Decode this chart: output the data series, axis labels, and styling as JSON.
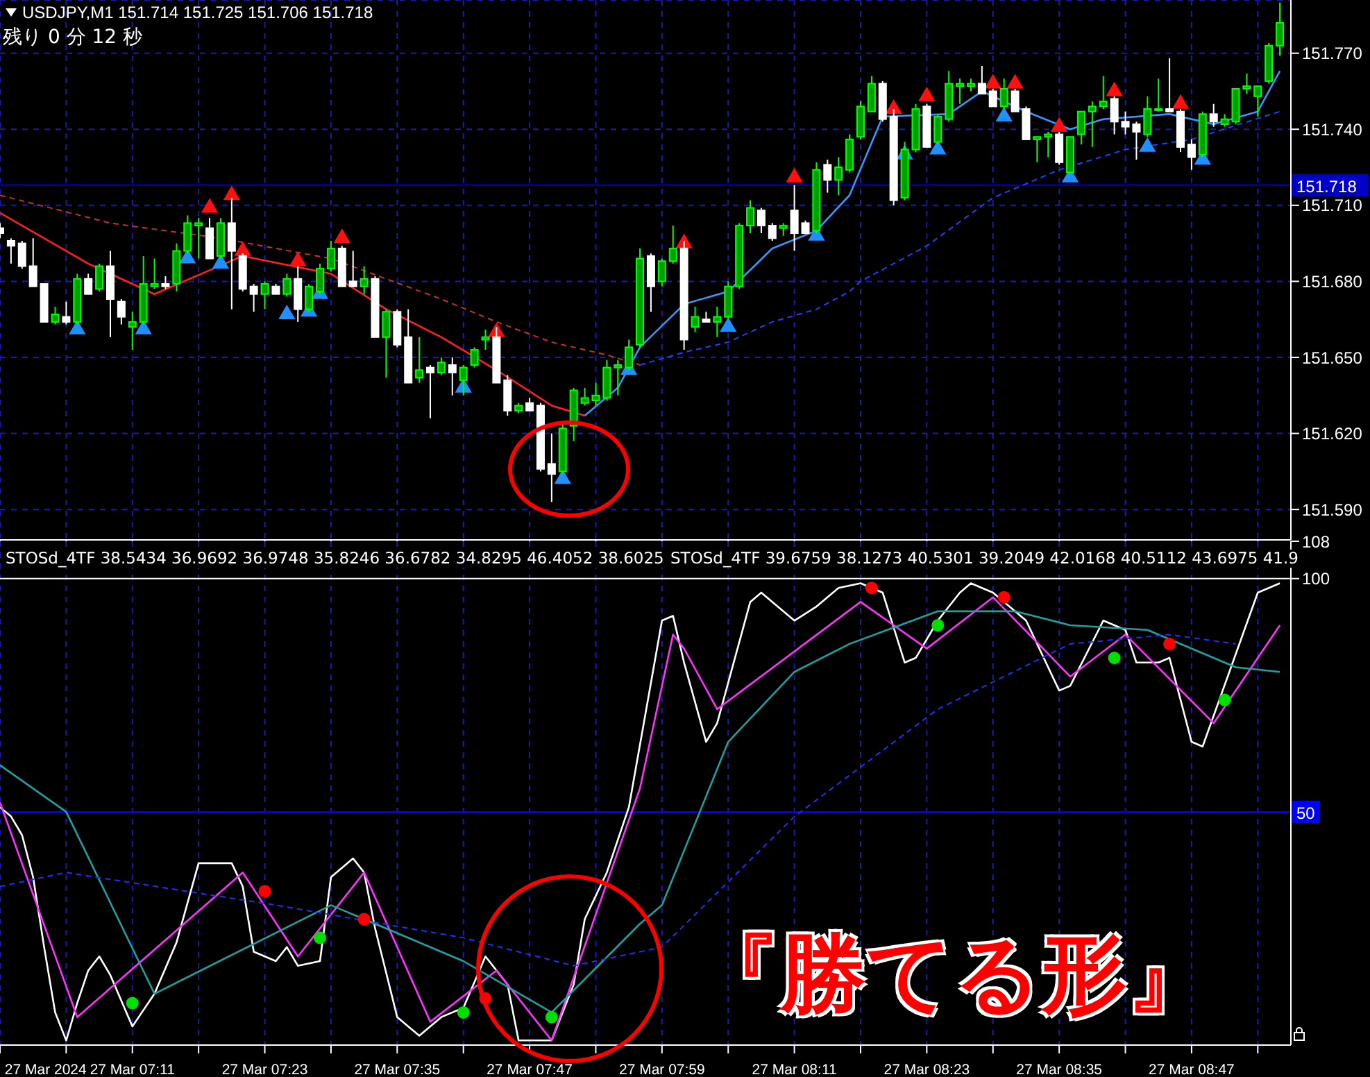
{
  "chart_data": [
    {
      "type": "candlestick",
      "title": "USDJPY,M1  151.714 151.725 151.706 151.718",
      "annotations": [
        "残り 0 分 12 秒"
      ],
      "x": [
        "2024-03-27T06:59",
        "2024-03-27T07:00",
        "2024-03-27T07:01",
        "2024-03-27T07:02",
        "2024-03-27T07:03",
        "2024-03-27T07:04",
        "2024-03-27T07:05",
        "2024-03-27T07:06",
        "2024-03-27T07:07",
        "2024-03-27T07:08",
        "2024-03-27T07:09",
        "2024-03-27T07:10",
        "2024-03-27T07:11",
        "2024-03-27T07:12",
        "2024-03-27T07:13",
        "2024-03-27T07:14",
        "2024-03-27T07:15",
        "2024-03-27T07:16",
        "2024-03-27T07:17",
        "2024-03-27T07:18",
        "2024-03-27T07:19",
        "2024-03-27T07:20",
        "2024-03-27T07:21",
        "2024-03-27T07:22",
        "2024-03-27T07:23",
        "2024-03-27T07:24",
        "2024-03-27T07:25",
        "2024-03-27T07:26",
        "2024-03-27T07:27",
        "2024-03-27T07:28",
        "2024-03-27T07:29",
        "2024-03-27T07:30",
        "2024-03-27T07:31",
        "2024-03-27T07:32",
        "2024-03-27T07:33",
        "2024-03-27T07:34",
        "2024-03-27T07:35",
        "2024-03-27T07:36",
        "2024-03-27T07:37",
        "2024-03-27T07:38",
        "2024-03-27T07:39",
        "2024-03-27T07:40",
        "2024-03-27T07:41",
        "2024-03-27T07:42",
        "2024-03-27T07:43",
        "2024-03-27T07:44",
        "2024-03-27T07:45",
        "2024-03-27T07:46",
        "2024-03-27T07:47",
        "2024-03-27T07:48",
        "2024-03-27T07:49",
        "2024-03-27T07:50",
        "2024-03-27T07:51",
        "2024-03-27T07:52",
        "2024-03-27T07:53",
        "2024-03-27T07:54",
        "2024-03-27T07:55",
        "2024-03-27T07:56",
        "2024-03-27T07:57",
        "2024-03-27T07:58",
        "2024-03-27T07:59",
        "2024-03-27T08:00",
        "2024-03-27T08:01",
        "2024-03-27T08:02",
        "2024-03-27T08:03",
        "2024-03-27T08:04",
        "2024-03-27T08:05",
        "2024-03-27T08:06",
        "2024-03-27T08:07",
        "2024-03-27T08:08",
        "2024-03-27T08:09",
        "2024-03-27T08:10",
        "2024-03-27T08:11",
        "2024-03-27T08:12",
        "2024-03-27T08:13",
        "2024-03-27T08:14",
        "2024-03-27T08:15",
        "2024-03-27T08:16",
        "2024-03-27T08:17",
        "2024-03-27T08:18",
        "2024-03-27T08:19",
        "2024-03-27T08:20",
        "2024-03-27T08:21",
        "2024-03-27T08:22",
        "2024-03-27T08:23",
        "2024-03-27T08:24",
        "2024-03-27T08:25",
        "2024-03-27T08:26",
        "2024-03-27T08:27",
        "2024-03-27T08:28",
        "2024-03-27T08:29",
        "2024-03-27T08:30",
        "2024-03-27T08:31",
        "2024-03-27T08:32",
        "2024-03-27T08:33",
        "2024-03-27T08:34",
        "2024-03-27T08:35",
        "2024-03-27T08:36",
        "2024-03-27T08:37",
        "2024-03-27T08:38",
        "2024-03-27T08:39",
        "2024-03-27T08:40",
        "2024-03-27T08:41",
        "2024-03-27T08:42",
        "2024-03-27T08:43",
        "2024-03-27T08:44",
        "2024-03-27T08:45",
        "2024-03-27T08:46",
        "2024-03-27T08:47",
        "2024-03-27T08:48",
        "2024-03-27T08:49",
        "2024-03-27T08:50",
        "2024-03-27T08:51",
        "2024-03-27T08:52",
        "2024-03-27T08:53",
        "2024-03-27T08:54",
        "2024-03-27T08:55"
      ],
      "ohlc": [
        [
          151.701,
          151.703,
          151.697,
          151.699
        ],
        [
          151.696,
          151.697,
          151.687,
          151.694
        ],
        [
          151.695,
          151.696,
          151.685,
          151.686
        ],
        [
          151.686,
          151.697,
          151.678,
          151.678
        ],
        [
          151.679,
          151.679,
          151.664,
          151.664
        ],
        [
          151.664,
          151.67,
          151.663,
          151.667
        ],
        [
          151.666,
          151.672,
          151.663,
          151.664
        ],
        [
          151.664,
          151.683,
          151.663,
          151.681
        ],
        [
          151.681,
          151.683,
          151.675,
          151.675
        ],
        [
          151.677,
          151.687,
          151.676,
          151.686
        ],
        [
          151.686,
          151.692,
          151.658,
          151.673
        ],
        [
          151.672,
          151.673,
          151.663,
          151.666
        ],
        [
          151.662,
          151.668,
          151.653,
          151.664
        ],
        [
          151.664,
          151.69,
          151.663,
          151.679
        ],
        [
          151.678,
          151.689,
          151.677,
          151.679
        ],
        [
          151.679,
          151.682,
          151.677,
          151.678
        ],
        [
          151.679,
          151.695,
          151.676,
          151.692
        ],
        [
          151.692,
          151.706,
          151.691,
          151.703
        ],
        [
          151.702,
          151.705,
          151.689,
          151.703
        ],
        [
          151.701,
          151.705,
          151.689,
          151.689
        ],
        [
          151.69,
          151.705,
          151.689,
          151.703
        ],
        [
          151.703,
          151.713,
          151.669,
          151.692
        ],
        [
          151.69,
          151.691,
          151.676,
          151.677
        ],
        [
          151.678,
          151.679,
          151.668,
          151.675
        ],
        [
          151.675,
          151.68,
          151.669,
          151.679
        ],
        [
          151.678,
          151.679,
          151.675,
          151.675
        ],
        [
          151.675,
          151.683,
          151.674,
          151.681
        ],
        [
          151.681,
          151.686,
          151.664,
          151.669
        ],
        [
          151.669,
          151.679,
          151.668,
          151.678
        ],
        [
          151.676,
          151.687,
          151.675,
          151.685
        ],
        [
          151.685,
          151.696,
          151.684,
          151.693
        ],
        [
          151.693,
          151.694,
          151.678,
          151.678
        ],
        [
          151.68,
          151.692,
          151.678,
          151.678
        ],
        [
          151.678,
          151.686,
          151.675,
          151.681
        ],
        [
          151.681,
          151.682,
          151.658,
          151.658
        ],
        [
          151.658,
          151.669,
          151.642,
          151.668
        ],
        [
          151.668,
          151.669,
          151.654,
          151.655
        ],
        [
          151.658,
          151.669,
          151.64,
          151.64
        ],
        [
          151.642,
          151.658,
          151.64,
          151.645
        ],
        [
          151.646,
          151.647,
          151.626,
          151.644
        ],
        [
          151.644,
          151.65,
          151.643,
          151.648
        ],
        [
          151.647,
          151.65,
          151.635,
          151.644
        ],
        [
          151.641,
          151.647,
          151.635,
          151.646
        ],
        [
          151.647,
          151.654,
          151.646,
          151.653
        ],
        [
          151.657,
          151.661,
          151.653,
          151.658
        ],
        [
          151.658,
          151.662,
          151.64,
          151.64
        ],
        [
          151.641,
          151.643,
          151.627,
          151.629
        ],
        [
          151.629,
          151.632,
          151.628,
          151.631
        ],
        [
          151.632,
          151.634,
          151.629,
          151.629
        ],
        [
          151.631,
          151.632,
          151.605,
          151.606
        ],
        [
          151.608,
          151.62,
          151.593,
          151.604
        ],
        [
          151.605,
          151.624,
          151.604,
          151.622
        ],
        [
          151.623,
          151.638,
          151.617,
          151.637
        ],
        [
          151.632,
          151.638,
          151.631,
          151.634
        ],
        [
          151.633,
          151.64,
          151.631,
          151.635
        ],
        [
          151.634,
          151.649,
          151.633,
          151.646
        ],
        [
          151.646,
          151.649,
          151.635,
          151.647
        ],
        [
          151.646,
          151.657,
          151.645,
          151.654
        ],
        [
          151.655,
          151.693,
          151.654,
          151.689
        ],
        [
          151.69,
          151.691,
          151.668,
          151.678
        ],
        [
          151.68,
          151.689,
          151.678,
          151.688
        ],
        [
          151.688,
          151.702,
          151.687,
          151.693
        ],
        [
          151.693,
          151.696,
          151.653,
          151.657
        ],
        [
          151.662,
          151.67,
          151.66,
          151.666
        ],
        [
          151.665,
          151.668,
          151.664,
          151.664
        ],
        [
          151.664,
          151.67,
          151.658,
          151.666
        ],
        [
          151.666,
          151.68,
          151.665,
          151.678
        ],
        [
          151.678,
          151.703,
          151.677,
          151.702
        ],
        [
          151.702,
          151.712,
          151.699,
          151.709
        ],
        [
          151.708,
          151.709,
          151.699,
          151.702
        ],
        [
          151.702,
          151.703,
          151.696,
          151.697
        ],
        [
          151.701,
          151.703,
          151.698,
          151.702
        ],
        [
          151.708,
          151.718,
          151.692,
          151.699
        ],
        [
          151.703,
          151.704,
          151.699,
          151.699
        ],
        [
          151.7,
          151.727,
          151.699,
          151.724
        ],
        [
          151.726,
          151.728,
          151.715,
          151.72
        ],
        [
          151.72,
          151.729,
          151.714,
          151.725
        ],
        [
          151.724,
          151.738,
          151.723,
          151.736
        ],
        [
          151.737,
          151.751,
          151.736,
          151.749
        ],
        [
          151.747,
          151.761,
          151.747,
          151.758
        ],
        [
          151.758,
          151.759,
          151.743,
          151.744
        ],
        [
          151.745,
          151.748,
          151.71,
          151.712
        ],
        [
          151.713,
          151.735,
          151.712,
          151.732
        ],
        [
          151.732,
          151.75,
          151.731,
          151.748
        ],
        [
          151.749,
          151.75,
          151.733,
          151.733
        ],
        [
          151.735,
          151.746,
          151.734,
          151.745
        ],
        [
          151.744,
          151.763,
          151.743,
          151.758
        ],
        [
          151.757,
          151.76,
          151.75,
          151.758
        ],
        [
          151.757,
          151.76,
          151.755,
          151.758
        ],
        [
          151.758,
          151.765,
          151.754,
          151.754
        ],
        [
          151.755,
          151.756,
          151.749,
          151.749
        ],
        [
          151.749,
          151.76,
          151.748,
          151.756
        ],
        [
          151.755,
          151.756,
          151.747,
          151.747
        ],
        [
          151.748,
          151.749,
          151.736,
          151.736
        ],
        [
          151.736,
          151.737,
          151.727,
          151.737
        ],
        [
          151.737,
          151.739,
          151.729,
          151.738
        ],
        [
          151.738,
          151.739,
          151.726,
          151.727
        ],
        [
          151.723,
          151.737,
          151.723,
          151.737
        ],
        [
          151.738,
          151.747,
          151.734,
          151.747
        ],
        [
          151.747,
          151.751,
          151.733,
          151.749
        ],
        [
          151.749,
          151.761,
          151.748,
          151.751
        ],
        [
          151.752,
          151.753,
          151.738,
          151.743
        ],
        [
          151.743,
          151.747,
          151.738,
          151.741
        ],
        [
          151.742,
          151.743,
          151.728,
          151.739
        ],
        [
          151.738,
          151.753,
          151.737,
          151.748
        ],
        [
          151.748,
          151.76,
          151.747,
          151.748
        ],
        [
          151.748,
          151.768,
          151.747,
          151.747
        ],
        [
          151.747,
          151.748,
          151.731,
          151.733
        ],
        [
          151.734,
          151.736,
          151.724,
          151.729
        ],
        [
          151.73,
          151.747,
          151.729,
          151.746
        ],
        [
          151.746,
          151.75,
          151.741,
          151.743
        ],
        [
          151.742,
          151.746,
          151.741,
          151.744
        ],
        [
          151.743,
          151.756,
          151.742,
          151.756
        ],
        [
          151.756,
          151.762,
          151.754,
          151.757
        ],
        [
          151.753,
          151.757,
          151.745,
          151.757
        ],
        [
          151.759,
          151.774,
          151.758,
          151.773
        ],
        [
          151.773,
          151.79,
          151.769,
          151.782
        ]
      ],
      "series": [
        {
          "type": "line",
          "color": "#ff2020",
          "x": [
            "2024-03-27T06:59",
            "2024-03-27T07:07",
            "2024-03-27T07:13",
            "2024-03-27T07:21",
            "2024-03-27T07:29",
            "2024-03-27T07:34",
            "2024-03-27T07:39",
            "2024-03-27T07:44",
            "2024-03-27T07:49",
            "2024-03-27T07:52"
          ],
          "values": [
            151.707,
            151.687,
            151.675,
            151.69,
            151.683,
            151.669,
            151.658,
            151.645,
            151.631,
            151.627
          ]
        },
        {
          "type": "line",
          "color": "#3399ff",
          "x": [
            "2024-03-27T07:52",
            "2024-03-27T07:55",
            "2024-03-27T07:57",
            "2024-03-27T08:01",
            "2024-03-27T08:05",
            "2024-03-27T08:09",
            "2024-03-27T08:13",
            "2024-03-27T08:16",
            "2024-03-27T08:19",
            "2024-03-27T08:25",
            "2024-03-27T08:28",
            "2024-03-27T08:32",
            "2024-03-27T08:36",
            "2024-03-27T08:39",
            "2024-03-27T08:45",
            "2024-03-27T08:49",
            "2024-03-27T08:53",
            "2024-03-27T08:55"
          ],
          "values": [
            151.627,
            151.638,
            151.654,
            151.671,
            151.676,
            151.693,
            151.7,
            151.714,
            151.745,
            151.746,
            151.755,
            151.747,
            151.74,
            151.744,
            151.746,
            151.742,
            151.747,
            151.763
          ]
        },
        {
          "type": "line",
          "color": "#c83030",
          "line_style": "dashed",
          "x": [
            "2024-03-27T06:59",
            "2024-03-27T07:09",
            "2024-03-27T07:19",
            "2024-03-27T07:29",
            "2024-03-27T07:39",
            "2024-03-27T07:44",
            "2024-03-27T07:49",
            "2024-03-27T07:54",
            "2024-03-27T07:57"
          ],
          "values": [
            151.714,
            151.703,
            151.697,
            151.689,
            151.673,
            151.664,
            151.656,
            151.651,
            151.647
          ]
        },
        {
          "type": "line",
          "color": "#2040ff",
          "line_style": "dashed",
          "x": [
            "2024-03-27T07:57",
            "2024-03-27T08:01",
            "2024-03-27T08:05",
            "2024-03-27T08:09",
            "2024-03-27T08:13",
            "2024-03-27T08:16",
            "2024-03-27T08:17",
            "2024-03-27T08:23",
            "2024-03-27T08:29",
            "2024-03-27T08:35",
            "2024-03-27T08:41",
            "2024-03-27T08:47",
            "2024-03-27T08:55"
          ],
          "values": [
            151.647,
            151.652,
            151.656,
            151.664,
            151.669,
            151.676,
            151.68,
            151.694,
            151.713,
            151.724,
            151.732,
            151.736,
            151.747
          ]
        },
        {
          "type": "scatter",
          "marker": "triangle",
          "color": "#ff1010",
          "x": [
            "2024-03-27T07:18",
            "2024-03-27T07:20",
            "2024-03-27T07:21",
            "2024-03-27T07:26",
            "2024-03-27T07:30",
            "2024-03-27T07:44",
            "2024-03-27T08:01",
            "2024-03-27T08:11",
            "2024-03-27T08:20",
            "2024-03-27T08:23",
            "2024-03-27T08:29",
            "2024-03-27T08:31",
            "2024-03-27T08:35",
            "2024-03-27T08:40",
            "2024-03-27T08:46"
          ],
          "values": [
            151.709,
            151.714,
            151.692,
            151.688,
            151.697,
            151.66,
            151.695,
            151.721,
            151.748,
            151.753,
            151.758,
            151.758,
            151.741,
            151.755,
            151.75
          ]
        },
        {
          "type": "scatter",
          "marker": "triangle",
          "color": "#1e90ff",
          "x": [
            "2024-03-27T07:06",
            "2024-03-27T07:12",
            "2024-03-27T07:16",
            "2024-03-27T07:19",
            "2024-03-27T07:25",
            "2024-03-27T07:27",
            "2024-03-27T07:28",
            "2024-03-27T07:41",
            "2024-03-27T07:50",
            "2024-03-27T07:56",
            "2024-03-27T08:05",
            "2024-03-27T08:13",
            "2024-03-27T08:21",
            "2024-03-27T08:24",
            "2024-03-27T08:30",
            "2024-03-27T08:36",
            "2024-03-27T08:43",
            "2024-03-27T08:48"
          ],
          "values": [
            151.661,
            151.661,
            151.689,
            151.687,
            151.667,
            151.668,
            151.675,
            151.638,
            151.602,
            151.645,
            151.662,
            151.698,
            151.73,
            151.732,
            151.745,
            151.721,
            151.733,
            151.728
          ]
        }
      ],
      "xlim": [
        "2024-03-27T06:59",
        "2024-03-27T08:56"
      ],
      "xticks": [
        {
          "value": "2024-03-27T06:59",
          "label": null
        },
        {
          "value": "2024-03-27T07:05",
          "label": null
        },
        {
          "value": "2024-03-27T07:11",
          "label": null
        },
        {
          "value": "2024-03-27T07:17",
          "label": null
        },
        {
          "value": "2024-03-27T07:23",
          "label": null
        },
        {
          "value": "2024-03-27T07:29",
          "label": null
        },
        {
          "value": "2024-03-27T07:35",
          "label": null
        },
        {
          "value": "2024-03-27T07:41",
          "label": null
        },
        {
          "value": "2024-03-27T07:47",
          "label": null
        },
        {
          "value": "2024-03-27T07:53",
          "label": null
        },
        {
          "value": "2024-03-27T07:59",
          "label": null
        },
        {
          "value": "2024-03-27T08:05",
          "label": null
        },
        {
          "value": "2024-03-27T08:11",
          "label": null
        },
        {
          "value": "2024-03-27T08:17",
          "label": null
        },
        {
          "value": "2024-03-27T08:23",
          "label": null
        },
        {
          "value": "2024-03-27T08:29",
          "label": null
        },
        {
          "value": "2024-03-27T08:35",
          "label": null
        },
        {
          "value": "2024-03-27T08:41",
          "label": null
        },
        {
          "value": "2024-03-27T08:47",
          "label": null
        },
        {
          "value": "2024-03-27T08:53",
          "label": null
        }
      ],
      "ylim": [
        151.578,
        151.791
      ],
      "yticks": [
        {
          "value": 151.59,
          "label": "151.590"
        },
        {
          "value": 151.62,
          "label": "151.620"
        },
        {
          "value": 151.65,
          "label": "151.650"
        },
        {
          "value": 151.68,
          "label": "151.680"
        },
        {
          "value": 151.71,
          "label": "151.710"
        },
        {
          "value": 151.74,
          "label": "151.740"
        },
        {
          "value": 151.77,
          "label": "151.770"
        }
      ],
      "ref_lines": [
        {
          "axis": "y",
          "value": 151.718,
          "label": "151.718",
          "color": "#0000c8"
        }
      ],
      "grid": true,
      "tick_labels": "y"
    },
    {
      "type": "line",
      "annotations": [
        "STOSd_4TF 38.5434 36.9692 36.9748 35.8246 36.6782 34.8295 46.4052 38.6025",
        "STOSd_4TF 39.6759 38.1273 40.5301 39.2049 42.0168 40.5112 43.6975 41.9",
        "『勝てる形』"
      ],
      "series": [
        {
          "color": "#ffffff",
          "x": [
            "2024-03-27T06:59",
            "2024-03-27T07:00",
            "2024-03-27T07:01",
            "2024-03-27T07:02",
            "2024-03-27T07:03",
            "2024-03-27T07:04",
            "2024-03-27T07:05",
            "2024-03-27T07:06",
            "2024-03-27T07:07",
            "2024-03-27T07:08",
            "2024-03-27T07:09",
            "2024-03-27T07:11",
            "2024-03-27T07:13",
            "2024-03-27T07:15",
            "2024-03-27T07:17",
            "2024-03-27T07:20",
            "2024-03-27T07:21",
            "2024-03-27T07:22",
            "2024-03-27T07:24",
            "2024-03-27T07:25",
            "2024-03-27T07:26",
            "2024-03-27T07:28",
            "2024-03-27T07:29",
            "2024-03-27T07:31",
            "2024-03-27T07:32",
            "2024-03-27T07:33",
            "2024-03-27T07:35",
            "2024-03-27T07:37",
            "2024-03-27T07:39",
            "2024-03-27T07:41",
            "2024-03-27T07:43",
            "2024-03-27T07:45",
            "2024-03-27T07:46",
            "2024-03-27T07:49",
            "2024-03-27T07:51",
            "2024-03-27T07:52",
            "2024-03-27T07:54",
            "2024-03-27T07:56",
            "2024-03-27T07:59",
            "2024-03-27T08:00",
            "2024-03-27T08:01",
            "2024-03-27T08:03",
            "2024-03-27T08:04",
            "2024-03-27T08:07",
            "2024-03-27T08:08",
            "2024-03-27T08:09",
            "2024-03-27T08:11",
            "2024-03-27T08:13",
            "2024-03-27T08:15",
            "2024-03-27T08:17",
            "2024-03-27T08:19",
            "2024-03-27T08:21",
            "2024-03-27T08:22",
            "2024-03-27T08:24",
            "2024-03-27T08:26",
            "2024-03-27T08:27",
            "2024-03-27T08:29",
            "2024-03-27T08:32",
            "2024-03-27T08:35",
            "2024-03-27T08:36",
            "2024-03-27T08:39",
            "2024-03-27T08:41",
            "2024-03-27T08:42",
            "2024-03-27T08:44",
            "2024-03-27T08:45",
            "2024-03-27T08:47",
            "2024-03-27T08:48",
            "2024-03-27T08:53",
            "2024-03-27T08:55"
          ],
          "values": [
            51,
            49,
            45,
            36,
            21,
            7,
            1,
            9,
            16,
            19,
            15,
            4,
            11,
            22,
            39,
            39,
            34,
            20,
            18,
            21,
            17,
            18,
            36,
            40,
            37,
            25,
            6,
            2,
            6,
            8,
            19,
            13,
            1,
            1,
            13,
            27,
            37,
            51,
            91,
            92,
            82,
            65,
            69,
            95,
            97,
            95,
            91,
            94,
            98,
            99,
            97,
            82,
            83,
            91,
            97,
            99,
            97,
            91,
            76,
            77,
            91,
            89,
            82,
            82,
            83,
            65,
            64,
            97,
            99
          ]
        },
        {
          "color": "#ff33ff",
          "x": [
            "2024-03-27T06:59",
            "2024-03-27T07:06",
            "2024-03-27T07:21",
            "2024-03-27T07:26",
            "2024-03-27T07:32",
            "2024-03-27T07:38",
            "2024-03-27T07:44",
            "2024-03-27T07:49",
            "2024-03-27T07:57",
            "2024-03-27T08:00",
            "2024-03-27T08:01",
            "2024-03-27T08:04",
            "2024-03-27T08:17",
            "2024-03-27T08:23",
            "2024-03-27T08:29",
            "2024-03-27T08:36",
            "2024-03-27T08:41",
            "2024-03-27T08:49",
            "2024-03-27T08:55"
          ],
          "values": [
            52,
            6,
            37,
            19,
            37,
            5,
            16,
            1,
            55,
            88,
            85,
            72,
            95,
            85,
            96,
            79,
            88,
            69,
            90
          ]
        },
        {
          "color": "#20a0a0",
          "x": [
            "2024-03-27T06:59",
            "2024-03-27T07:05",
            "2024-03-27T07:13",
            "2024-03-27T07:29",
            "2024-03-27T07:41",
            "2024-03-27T07:49",
            "2024-03-27T07:57",
            "2024-03-27T07:59",
            "2024-03-27T08:05",
            "2024-03-27T08:11",
            "2024-03-27T08:16",
            "2024-03-27T08:24",
            "2024-03-27T08:31",
            "2024-03-27T08:36",
            "2024-03-27T08:43",
            "2024-03-27T08:51",
            "2024-03-27T08:55"
          ],
          "values": [
            60,
            50,
            11,
            30,
            18,
            7,
            26,
            30,
            65,
            80,
            86,
            93,
            93,
            90,
            89,
            81,
            80
          ]
        },
        {
          "color": "#2030ff",
          "line_style": "dashed",
          "x": [
            "2024-03-27T06:59",
            "2024-03-27T07:05",
            "2024-03-27T07:24",
            "2024-03-27T07:41",
            "2024-03-27T07:51",
            "2024-03-27T07:59",
            "2024-03-27T08:11",
            "2024-03-27T08:24",
            "2024-03-27T08:36",
            "2024-03-27T08:45",
            "2024-03-27T08:51"
          ],
          "values": [
            34,
            37,
            30,
            23,
            17,
            21,
            49,
            72,
            86,
            88,
            86
          ]
        },
        {
          "type": "scatter",
          "marker": "circle",
          "color": "#ff0000",
          "x": [
            "2024-03-27T07:23",
            "2024-03-27T07:32",
            "2024-03-27T07:43",
            "2024-03-27T08:18",
            "2024-03-27T08:30",
            "2024-03-27T08:45"
          ],
          "values": [
            33,
            27,
            10,
            98,
            96,
            86
          ]
        },
        {
          "type": "scatter",
          "marker": "circle",
          "color": "#00e000",
          "x": [
            "2024-03-27T07:11",
            "2024-03-27T07:28",
            "2024-03-27T07:41",
            "2024-03-27T07:49",
            "2024-03-27T08:24",
            "2024-03-27T08:40",
            "2024-03-27T08:50"
          ],
          "values": [
            9,
            23,
            7,
            6,
            90,
            83,
            74
          ]
        }
      ],
      "xlim": [
        "2024-03-27T06:59",
        "2024-03-27T08:56"
      ],
      "xticks": [
        {
          "value": "2024-03-27T06:59",
          "label": "27 Mar 2024"
        },
        {
          "value": "2024-03-27T07:05",
          "label": null
        },
        {
          "value": "2024-03-27T07:11",
          "label": "27 Mar 07:11"
        },
        {
          "value": "2024-03-27T07:17",
          "label": null
        },
        {
          "value": "2024-03-27T07:23",
          "label": "27 Mar 07:23"
        },
        {
          "value": "2024-03-27T07:29",
          "label": null
        },
        {
          "value": "2024-03-27T07:35",
          "label": "27 Mar 07:35"
        },
        {
          "value": "2024-03-27T07:41",
          "label": null
        },
        {
          "value": "2024-03-27T07:47",
          "label": "27 Mar 07:47"
        },
        {
          "value": "2024-03-27T07:53",
          "label": null
        },
        {
          "value": "2024-03-27T07:59",
          "label": "27 Mar 07:59"
        },
        {
          "value": "2024-03-27T08:05",
          "label": null
        },
        {
          "value": "2024-03-27T08:11",
          "label": "27 Mar 08:11"
        },
        {
          "value": "2024-03-27T08:17",
          "label": null
        },
        {
          "value": "2024-03-27T08:23",
          "label": "27 Mar 08:23"
        },
        {
          "value": "2024-03-27T08:29",
          "label": null
        },
        {
          "value": "2024-03-27T08:35",
          "label": "27 Mar 08:35"
        },
        {
          "value": "2024-03-27T08:41",
          "label": null
        },
        {
          "value": "2024-03-27T08:47",
          "label": "27 Mar 08:47"
        },
        {
          "value": "2024-03-27T08:53",
          "label": null
        }
      ],
      "ylim": [
        0,
        108
      ],
      "yticks": [
        100,
        108
      ],
      "ref_lines": [
        {
          "axis": "y",
          "value": 50,
          "label": "50",
          "color": "#0000ff"
        },
        {
          "axis": "y",
          "value": 100,
          "color": "#ffffff"
        }
      ],
      "grid": "x"
    }
  ]
}
